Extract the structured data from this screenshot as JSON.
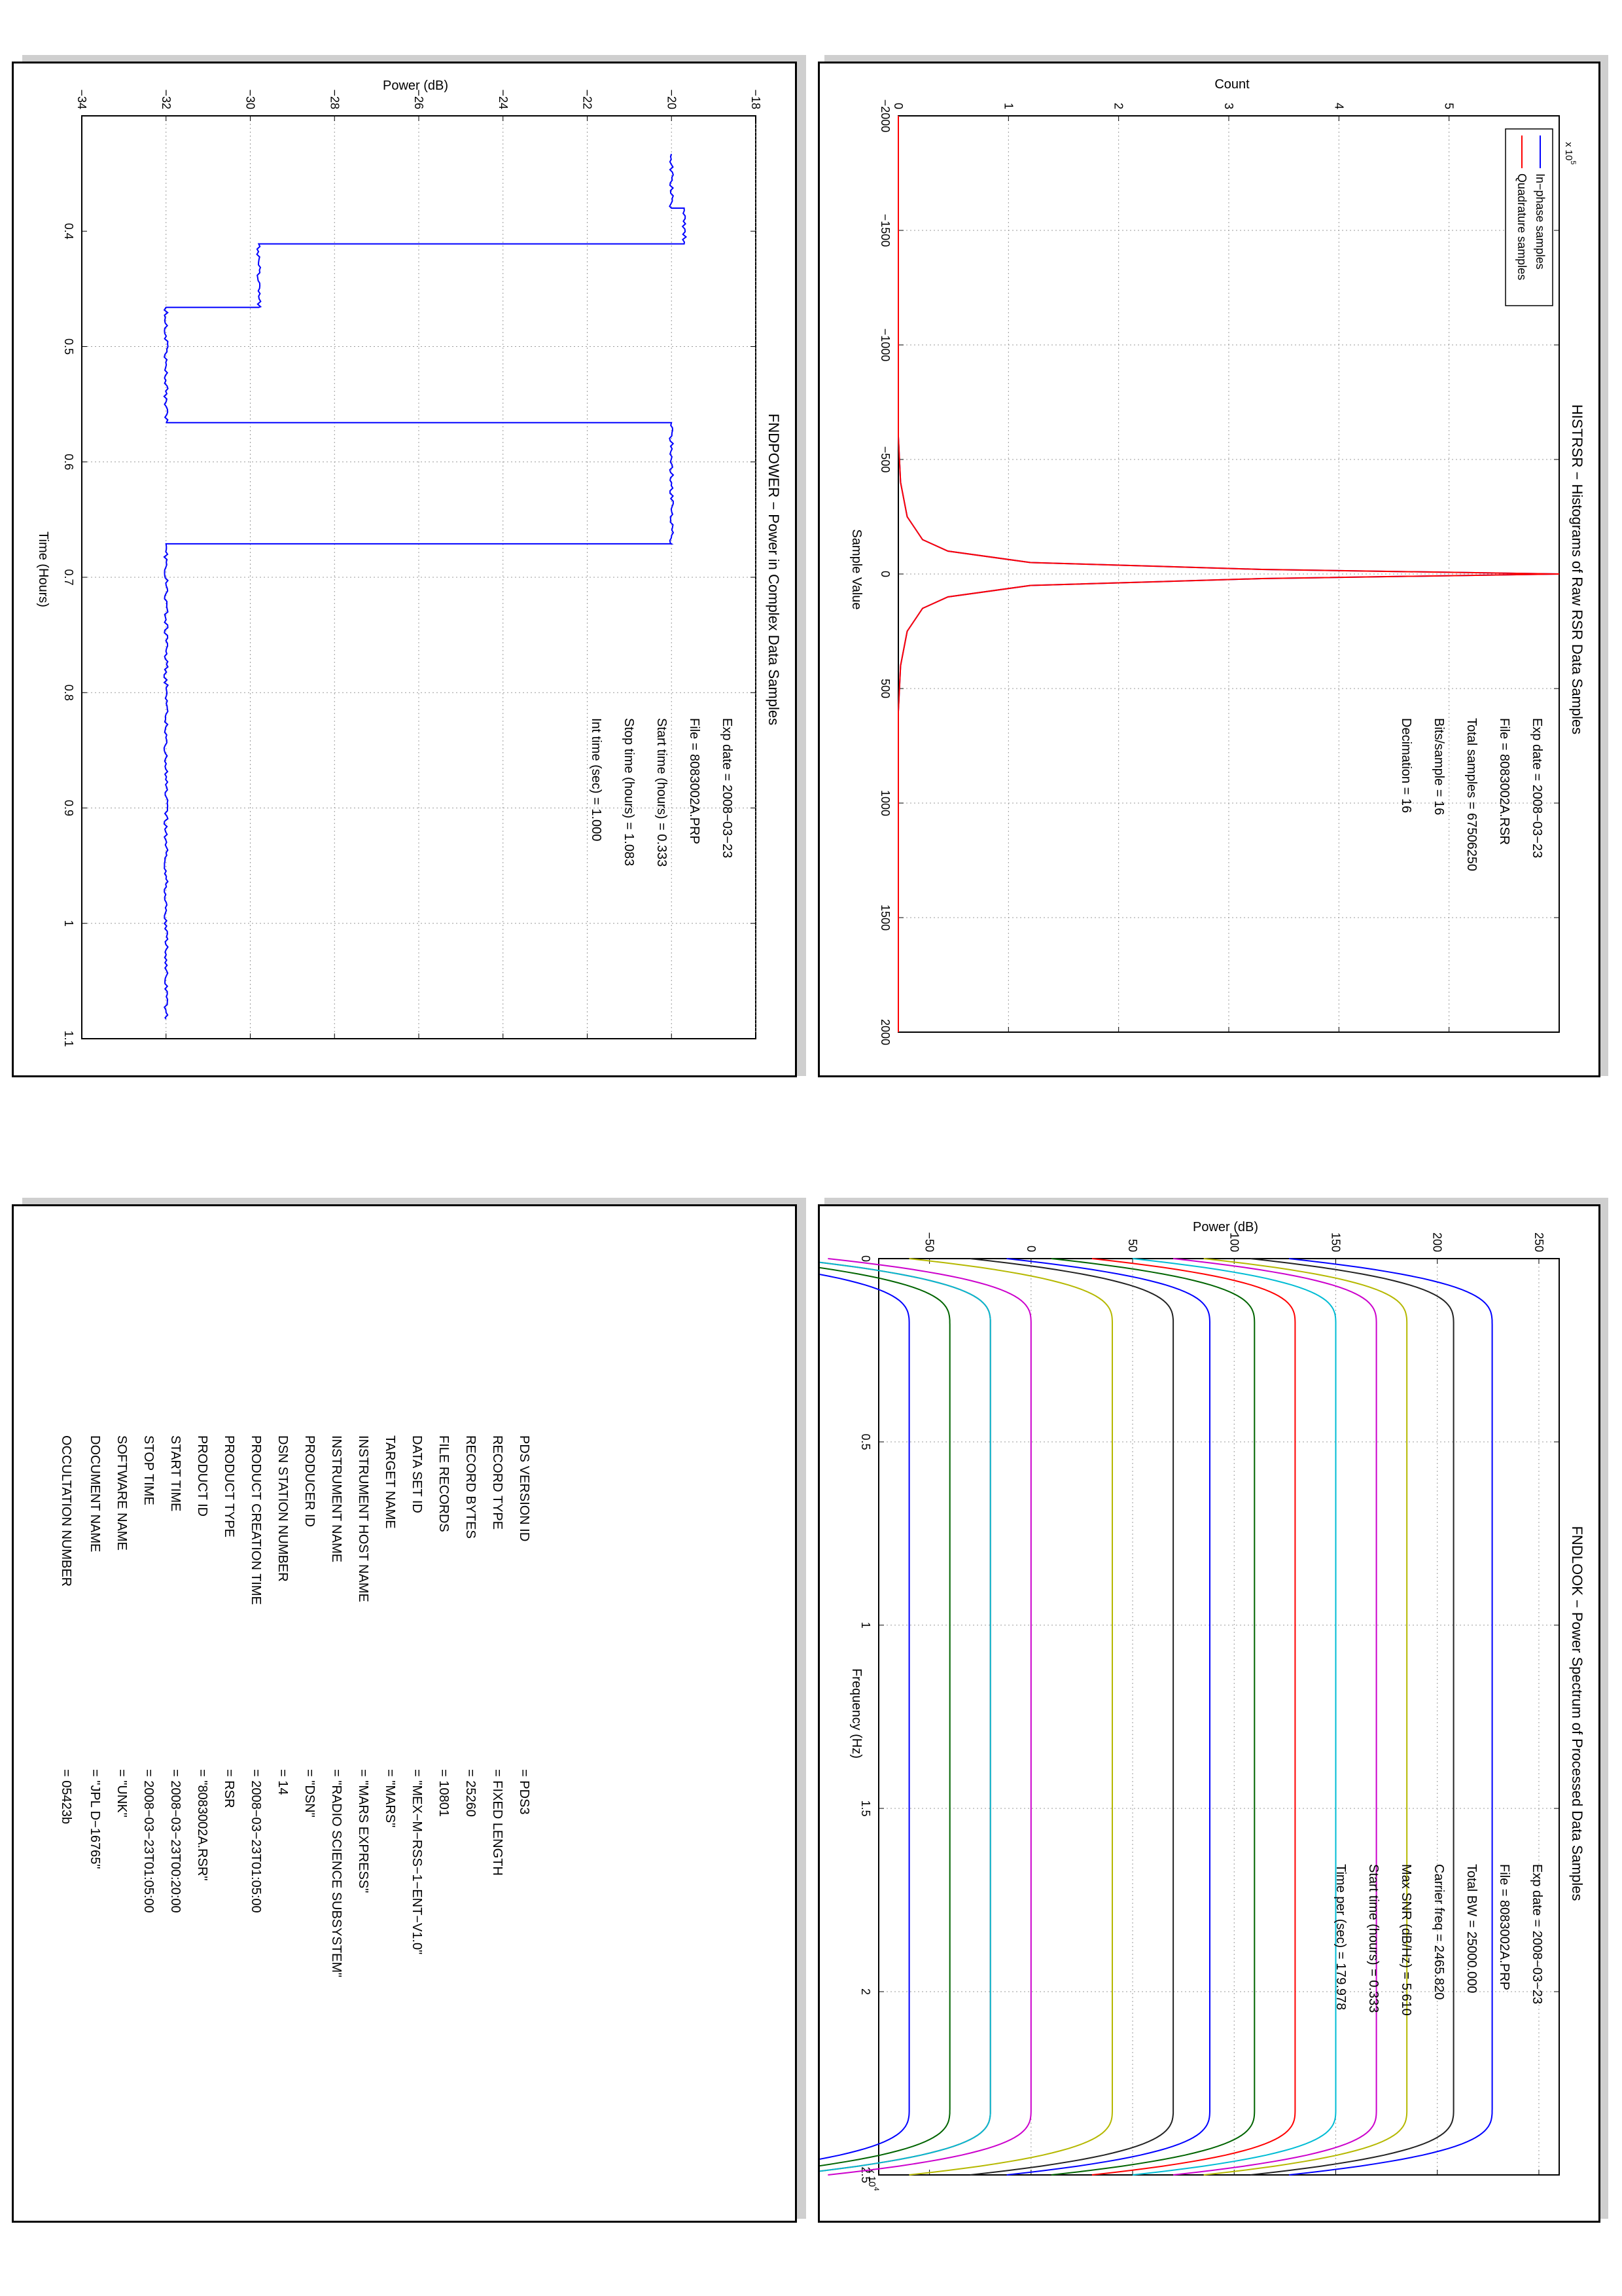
{
  "chart_data": [
    {
      "type": "line",
      "title": "HISTRSR − Histograms of Raw RSR Data Samples",
      "xlabel": "Sample Value",
      "ylabel": "Count",
      "xlim": [
        -2000,
        2000
      ],
      "ylim": [
        0,
        600000
      ],
      "y_exponent": "x 10^5",
      "xticks": [
        "−2000",
        "−1500",
        "−1000",
        "−500",
        "0",
        "500",
        "1000",
        "1500",
        "2000"
      ],
      "yticks": [
        "0",
        "1",
        "2",
        "3",
        "4",
        "5"
      ],
      "grid": true,
      "legend_position": "top-left",
      "series": [
        {
          "name": "In−phase samples",
          "color": "#0000ff",
          "x": [
            -2000,
            -600,
            -400,
            -250,
            -150,
            -100,
            -50,
            -20,
            0,
            20,
            50,
            100,
            150,
            250,
            400,
            600,
            2000
          ],
          "y": [
            0,
            0,
            2000,
            8000,
            22000,
            45000,
            120000,
            330000,
            600000,
            330000,
            120000,
            45000,
            22000,
            8000,
            2000,
            0,
            0
          ]
        },
        {
          "name": "Quadrature samples",
          "color": "#ff0000",
          "x": [
            -2000,
            -600,
            -400,
            -250,
            -150,
            -100,
            -50,
            -20,
            0,
            20,
            50,
            100,
            150,
            250,
            400,
            600,
            2000
          ],
          "y": [
            0,
            0,
            2000,
            8000,
            22000,
            45000,
            120000,
            330000,
            600000,
            330000,
            120000,
            45000,
            22000,
            8000,
            2000,
            0,
            0
          ]
        }
      ],
      "annotations": [
        "Exp date = 2008−03−23",
        "File = 8083002A.RSR",
        "Total samples =  67506250",
        "Bits/sample    =         16",
        "Decimation      =         16"
      ]
    },
    {
      "type": "line",
      "title": "FNDPOWER − Power in Complex Data Samples",
      "xlabel": "Time (Hours)",
      "ylabel": "Power (dB)",
      "xlim": [
        0.3,
        1.1
      ],
      "ylim": [
        -34,
        -18
      ],
      "xticks": [
        "0.4",
        "0.5",
        "0.6",
        "0.7",
        "0.8",
        "0.9",
        "1",
        "1.1"
      ],
      "yticks": [
        "−34",
        "−32",
        "−30",
        "−28",
        "−26",
        "−24",
        "−22",
        "−20",
        "−18"
      ],
      "grid": true,
      "series": [
        {
          "color": "#0000ff",
          "x": [
            0.333,
            0.38,
            0.38,
            0.411,
            0.411,
            0.466,
            0.466,
            0.566,
            0.566,
            0.671,
            0.671,
            1.083
          ],
          "y": [
            -20.0,
            -20.0,
            -19.7,
            -19.7,
            -29.8,
            -29.8,
            -32.0,
            -32.0,
            -20.0,
            -20.0,
            -32.0,
            -32.0
          ]
        }
      ],
      "annotations": [
        "Exp date = 2008−03−23",
        "File = 8083002A.PRP",
        "Start time (hours) =  0.333",
        "Stop time (hours)  =  1.083",
        "Int time (sec)  =      1.000"
      ]
    },
    {
      "type": "line",
      "title": "FNDLOOK − Power Spectrum of Processed Data Samples",
      "xlabel": "Frequency (Hz)",
      "ylabel": "Power (dB)",
      "xlim": [
        0,
        25000
      ],
      "ylim": [
        -75,
        260
      ],
      "x_exponent": "x 10^4",
      "xticks": [
        "0",
        "0.5",
        "1",
        "1.5",
        "2",
        "2.5"
      ],
      "yticks": [
        "−50",
        "0",
        "50",
        "100",
        "150",
        "200",
        "250"
      ],
      "grid": true,
      "series": [
        {
          "color": "#0000ff",
          "level": -60
        },
        {
          "color": "#006400",
          "level": -40
        },
        {
          "color": "#ff0000",
          "level": -20
        },
        {
          "color": "#00bcd4",
          "level": -20
        },
        {
          "color": "#cc00cc",
          "level": 0
        },
        {
          "color": "#b5b800",
          "level": 40
        },
        {
          "color": "#222222",
          "level": 70
        },
        {
          "color": "#0000ff",
          "level": 88
        },
        {
          "color": "#006400",
          "level": 110
        },
        {
          "color": "#ff0000",
          "level": 130
        },
        {
          "color": "#00bcd4",
          "level": 150
        },
        {
          "color": "#cc00cc",
          "level": 170
        },
        {
          "color": "#b5b800",
          "level": 185
        },
        {
          "color": "#222222",
          "level": 208
        },
        {
          "color": "#0000ff",
          "level": 227
        }
      ],
      "annotations": [
        "Exp date = 2008−03−23",
        "File = 8083002A.PRP",
        "Total BW =       25000.000",
        "Carrier freq =    2465.820",
        "Max SNR (dB/Hz) =     5.610",
        "Start time (hours) =    0.333",
        "Time per (sec)  =    179.978"
      ]
    }
  ],
  "label_panel": {
    "rows": [
      {
        "key": "PDS VERSION ID",
        "value": "=  PDS3"
      },
      {
        "key": "RECORD TYPE",
        "value": "=  FIXED LENGTH"
      },
      {
        "key": "RECORD BYTES",
        "value": "=  25260"
      },
      {
        "key": "FILE RECORDS",
        "value": "=  10801"
      },
      {
        "key": "DATA SET ID",
        "value": "=  \"MEX−M−RSS−1−ENT−V1.0\""
      },
      {
        "key": "TARGET NAME",
        "value": "=  \"MARS\""
      },
      {
        "key": "INSTRUMENT HOST NAME",
        "value": "=  \"MARS EXPRESS\""
      },
      {
        "key": "INSTRUMENT NAME",
        "value": "=  \"RADIO SCIENCE SUBSYSTEM\""
      },
      {
        "key": "PRODUCER ID",
        "value": "=  \"DSN\""
      },
      {
        "key": "DSN STATION NUMBER",
        "value": "=  14"
      },
      {
        "key": "PRODUCT CREATION TIME",
        "value": "=  2008−03−23T01:05:00"
      },
      {
        "key": "PRODUCT TYPE",
        "value": "=  RSR"
      },
      {
        "key": "PRODUCT ID",
        "value": "=  \"8083002A.RSR\""
      },
      {
        "key": "START TIME",
        "value": "=  2008−03−23T00:20:00"
      },
      {
        "key": "STOP TIME",
        "value": "=  2008−03−23T01:05:00"
      },
      {
        "key": "SOFTWARE NAME",
        "value": "=  \"UNK\""
      },
      {
        "key": "DOCUMENT NAME",
        "value": "=  \"JPL D−16765\""
      }
    ],
    "occultation": {
      "key": "OCCULTATION NUMBER",
      "value": "=  05423b"
    }
  }
}
